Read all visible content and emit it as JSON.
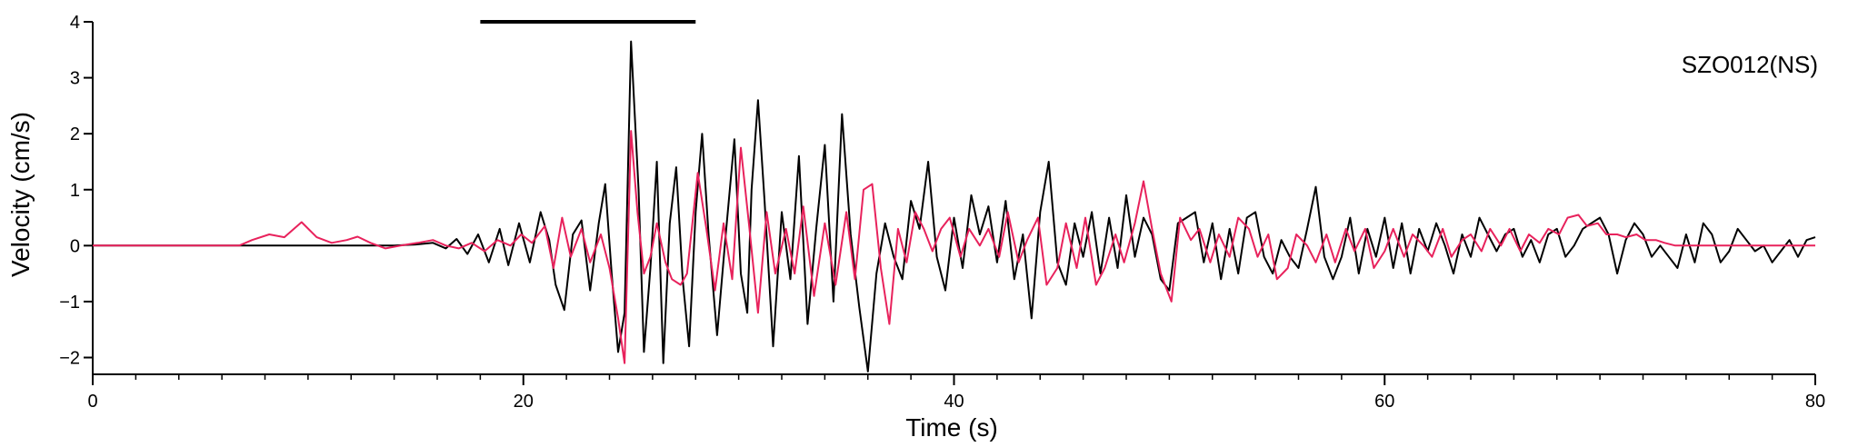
{
  "chart_data": {
    "type": "line",
    "station_label": "SZO012(NS)",
    "xlabel": "Time (s)",
    "ylabel": "Velocity (cm/s)",
    "xlim": [
      0,
      80
    ],
    "ylim": [
      -2.3,
      4.0
    ],
    "x_ticks": [
      0,
      20,
      40,
      60,
      80
    ],
    "y_ticks": [
      -2,
      -1,
      0,
      1,
      2,
      3,
      4
    ],
    "time_window": [
      18,
      28
    ],
    "grid": false,
    "legend": "none",
    "series": [
      {
        "color": "#000000",
        "points": [
          [
            0,
            0
          ],
          [
            5,
            0
          ],
          [
            10,
            0
          ],
          [
            14,
            0
          ],
          [
            15,
            0.02
          ],
          [
            15.8,
            0.05
          ],
          [
            16.4,
            -0.05
          ],
          [
            16.9,
            0.12
          ],
          [
            17.4,
            -0.15
          ],
          [
            17.9,
            0.2
          ],
          [
            18.4,
            -0.3
          ],
          [
            18.9,
            0.3
          ],
          [
            19.3,
            -0.35
          ],
          [
            19.8,
            0.4
          ],
          [
            20.3,
            -0.3
          ],
          [
            20.8,
            0.6
          ],
          [
            21.2,
            0.1
          ],
          [
            21.5,
            -0.7
          ],
          [
            21.9,
            -1.15
          ],
          [
            22.3,
            0.2
          ],
          [
            22.7,
            0.45
          ],
          [
            23.1,
            -0.8
          ],
          [
            23.5,
            0.4
          ],
          [
            23.8,
            1.1
          ],
          [
            24.1,
            -0.5
          ],
          [
            24.4,
            -1.9
          ],
          [
            24.7,
            -1.2
          ],
          [
            25,
            3.65
          ],
          [
            25.35,
            1.0
          ],
          [
            25.6,
            -1.9
          ],
          [
            25.9,
            -0.4
          ],
          [
            26.2,
            1.5
          ],
          [
            26.5,
            -2.1
          ],
          [
            26.8,
            0.4
          ],
          [
            27.1,
            1.4
          ],
          [
            27.4,
            -0.6
          ],
          [
            27.7,
            -1.8
          ],
          [
            28,
            0.6
          ],
          [
            28.3,
            2.0
          ],
          [
            28.6,
            0.2
          ],
          [
            29,
            -1.6
          ],
          [
            29.4,
            0.2
          ],
          [
            29.8,
            1.9
          ],
          [
            30.1,
            -0.5
          ],
          [
            30.4,
            -1.2
          ],
          [
            30.6,
            1.0
          ],
          [
            30.9,
            2.6
          ],
          [
            31.2,
            0.8
          ],
          [
            31.6,
            -1.8
          ],
          [
            32,
            0.6
          ],
          [
            32.4,
            -0.6
          ],
          [
            32.8,
            1.6
          ],
          [
            33.2,
            -1.4
          ],
          [
            33.6,
            0.3
          ],
          [
            34,
            1.8
          ],
          [
            34.4,
            -1.0
          ],
          [
            34.8,
            2.35
          ],
          [
            35.2,
            0.2
          ],
          [
            35.6,
            -1.1
          ],
          [
            36,
            -2.25
          ],
          [
            36.4,
            -0.5
          ],
          [
            36.8,
            0.4
          ],
          [
            37.2,
            -0.2
          ],
          [
            37.6,
            -0.6
          ],
          [
            38,
            0.8
          ],
          [
            38.4,
            0.3
          ],
          [
            38.8,
            1.5
          ],
          [
            39.2,
            -0.2
          ],
          [
            39.6,
            -0.8
          ],
          [
            40,
            0.5
          ],
          [
            40.4,
            -0.4
          ],
          [
            40.8,
            0.9
          ],
          [
            41.2,
            0.2
          ],
          [
            41.6,
            0.7
          ],
          [
            42,
            -0.3
          ],
          [
            42.4,
            0.8
          ],
          [
            42.8,
            -0.6
          ],
          [
            43.2,
            0.2
          ],
          [
            43.6,
            -1.3
          ],
          [
            44,
            0.6
          ],
          [
            44.4,
            1.5
          ],
          [
            44.8,
            -0.3
          ],
          [
            45.2,
            -0.7
          ],
          [
            45.6,
            0.4
          ],
          [
            46,
            -0.2
          ],
          [
            46.4,
            0.6
          ],
          [
            46.8,
            -0.5
          ],
          [
            47.2,
            0.5
          ],
          [
            47.6,
            -0.4
          ],
          [
            48,
            0.9
          ],
          [
            48.4,
            -0.2
          ],
          [
            48.8,
            0.5
          ],
          [
            49.2,
            0.2
          ],
          [
            49.6,
            -0.6
          ],
          [
            50,
            -0.8
          ],
          [
            50.4,
            0.4
          ],
          [
            50.8,
            0.5
          ],
          [
            51.2,
            0.6
          ],
          [
            51.6,
            -0.3
          ],
          [
            52,
            0.4
          ],
          [
            52.4,
            -0.6
          ],
          [
            52.8,
            0.3
          ],
          [
            53.2,
            -0.5
          ],
          [
            53.6,
            0.5
          ],
          [
            54,
            0.6
          ],
          [
            54.4,
            -0.2
          ],
          [
            54.8,
            -0.5
          ],
          [
            55.2,
            0.1
          ],
          [
            55.6,
            -0.2
          ],
          [
            56,
            -0.4
          ],
          [
            56.4,
            0.3
          ],
          [
            56.8,
            1.05
          ],
          [
            57.2,
            -0.2
          ],
          [
            57.6,
            -0.6
          ],
          [
            58,
            -0.2
          ],
          [
            58.4,
            0.5
          ],
          [
            58.8,
            -0.5
          ],
          [
            59.2,
            0.3
          ],
          [
            59.6,
            -0.2
          ],
          [
            60,
            0.5
          ],
          [
            60.4,
            -0.4
          ],
          [
            60.8,
            0.4
          ],
          [
            61.2,
            -0.5
          ],
          [
            61.6,
            0.3
          ],
          [
            62,
            -0.1
          ],
          [
            62.4,
            0.4
          ],
          [
            62.8,
            0.0
          ],
          [
            63.2,
            -0.5
          ],
          [
            63.6,
            0.2
          ],
          [
            64,
            -0.2
          ],
          [
            64.4,
            0.5
          ],
          [
            64.8,
            0.2
          ],
          [
            65.2,
            -0.1
          ],
          [
            65.6,
            0.2
          ],
          [
            66,
            0.3
          ],
          [
            66.4,
            -0.2
          ],
          [
            66.8,
            0.1
          ],
          [
            67.2,
            -0.3
          ],
          [
            67.6,
            0.2
          ],
          [
            68,
            0.3
          ],
          [
            68.4,
            -0.2
          ],
          [
            68.8,
            0.0
          ],
          [
            69.2,
            0.3
          ],
          [
            69.6,
            0.4
          ],
          [
            70,
            0.5
          ],
          [
            70.4,
            0.2
          ],
          [
            70.8,
            -0.5
          ],
          [
            71.2,
            0.1
          ],
          [
            71.6,
            0.4
          ],
          [
            72,
            0.2
          ],
          [
            72.4,
            -0.2
          ],
          [
            72.8,
            0.0
          ],
          [
            73.2,
            -0.2
          ],
          [
            73.6,
            -0.4
          ],
          [
            74,
            0.2
          ],
          [
            74.4,
            -0.3
          ],
          [
            74.8,
            0.4
          ],
          [
            75.2,
            0.2
          ],
          [
            75.6,
            -0.3
          ],
          [
            76,
            -0.1
          ],
          [
            76.4,
            0.3
          ],
          [
            76.8,
            0.1
          ],
          [
            77.2,
            -0.1
          ],
          [
            77.6,
            0.0
          ],
          [
            78,
            -0.3
          ],
          [
            78.4,
            -0.1
          ],
          [
            78.8,
            0.1
          ],
          [
            79.2,
            -0.2
          ],
          [
            79.6,
            0.1
          ],
          [
            80,
            0.15
          ]
        ]
      },
      {
        "color": "#e8225c",
        "points": [
          [
            0,
            0
          ],
          [
            6.8,
            0
          ],
          [
            7.4,
            0.1
          ],
          [
            8.2,
            0.2
          ],
          [
            8.9,
            0.15
          ],
          [
            9.7,
            0.42
          ],
          [
            10.4,
            0.15
          ],
          [
            11.1,
            0.05
          ],
          [
            11.8,
            0.1
          ],
          [
            12.3,
            0.16
          ],
          [
            12.9,
            0.05
          ],
          [
            13.6,
            -0.05
          ],
          [
            14.3,
            0.0
          ],
          [
            15.1,
            0.05
          ],
          [
            15.8,
            0.1
          ],
          [
            16.4,
            0.0
          ],
          [
            17,
            -0.05
          ],
          [
            17.6,
            0.05
          ],
          [
            18.2,
            -0.1
          ],
          [
            18.8,
            0.1
          ],
          [
            19.4,
            0.0
          ],
          [
            19.9,
            0.2
          ],
          [
            20.4,
            0.05
          ],
          [
            21,
            0.35
          ],
          [
            21.4,
            -0.4
          ],
          [
            21.8,
            0.5
          ],
          [
            22.2,
            -0.2
          ],
          [
            22.7,
            0.3
          ],
          [
            23.1,
            -0.3
          ],
          [
            23.6,
            0.2
          ],
          [
            24,
            -0.4
          ],
          [
            24.4,
            -1.3
          ],
          [
            24.7,
            -2.1
          ],
          [
            25,
            2.05
          ],
          [
            25.3,
            0.6
          ],
          [
            25.6,
            -0.5
          ],
          [
            25.9,
            -0.2
          ],
          [
            26.2,
            0.4
          ],
          [
            26.6,
            -0.3
          ],
          [
            26.9,
            -0.6
          ],
          [
            27.3,
            -0.7
          ],
          [
            27.6,
            -0.5
          ],
          [
            28.1,
            1.3
          ],
          [
            28.5,
            0.3
          ],
          [
            28.9,
            -0.8
          ],
          [
            29.3,
            0.4
          ],
          [
            29.7,
            -0.6
          ],
          [
            30.1,
            1.75
          ],
          [
            30.5,
            0.3
          ],
          [
            30.9,
            -1.2
          ],
          [
            31.3,
            0.6
          ],
          [
            31.7,
            -0.5
          ],
          [
            32.2,
            0.3
          ],
          [
            32.6,
            -0.5
          ],
          [
            33,
            0.7
          ],
          [
            33.5,
            -0.9
          ],
          [
            34,
            0.4
          ],
          [
            34.5,
            -0.7
          ],
          [
            35,
            0.6
          ],
          [
            35.4,
            -0.6
          ],
          [
            35.8,
            1.0
          ],
          [
            36.2,
            1.1
          ],
          [
            36.6,
            -0.4
          ],
          [
            37,
            -1.4
          ],
          [
            37.4,
            0.3
          ],
          [
            37.8,
            -0.3
          ],
          [
            38.2,
            0.6
          ],
          [
            38.6,
            0.3
          ],
          [
            39,
            -0.1
          ],
          [
            39.4,
            0.3
          ],
          [
            39.8,
            0.5
          ],
          [
            40.3,
            -0.2
          ],
          [
            40.7,
            0.3
          ],
          [
            41.2,
            0.0
          ],
          [
            41.6,
            0.3
          ],
          [
            42.1,
            -0.2
          ],
          [
            42.5,
            0.6
          ],
          [
            43,
            -0.3
          ],
          [
            43.4,
            0.1
          ],
          [
            43.9,
            0.5
          ],
          [
            44.3,
            -0.7
          ],
          [
            44.8,
            -0.4
          ],
          [
            45.2,
            0.4
          ],
          [
            45.7,
            -0.4
          ],
          [
            46.1,
            0.5
          ],
          [
            46.6,
            -0.7
          ],
          [
            47,
            -0.4
          ],
          [
            47.5,
            0.2
          ],
          [
            47.9,
            -0.3
          ],
          [
            48.4,
            0.4
          ],
          [
            48.8,
            1.15
          ],
          [
            49.2,
            0.3
          ],
          [
            49.6,
            -0.5
          ],
          [
            50.1,
            -1.0
          ],
          [
            50.5,
            0.5
          ],
          [
            51,
            0.1
          ],
          [
            51.4,
            0.3
          ],
          [
            51.9,
            -0.3
          ],
          [
            52.3,
            0.2
          ],
          [
            52.8,
            -0.2
          ],
          [
            53.2,
            0.5
          ],
          [
            53.7,
            0.3
          ],
          [
            54.1,
            -0.2
          ],
          [
            54.6,
            0.2
          ],
          [
            55,
            -0.6
          ],
          [
            55.5,
            -0.4
          ],
          [
            55.9,
            0.2
          ],
          [
            56.4,
            0.0
          ],
          [
            56.8,
            -0.3
          ],
          [
            57.3,
            0.2
          ],
          [
            57.7,
            -0.3
          ],
          [
            58.2,
            0.3
          ],
          [
            58.6,
            -0.1
          ],
          [
            59.1,
            0.3
          ],
          [
            59.5,
            -0.4
          ],
          [
            60,
            -0.1
          ],
          [
            60.4,
            0.3
          ],
          [
            60.9,
            -0.2
          ],
          [
            61.3,
            0.2
          ],
          [
            61.8,
            0.0
          ],
          [
            62.2,
            -0.2
          ],
          [
            62.7,
            0.3
          ],
          [
            63.1,
            -0.2
          ],
          [
            63.6,
            0.1
          ],
          [
            64,
            0.2
          ],
          [
            64.5,
            -0.1
          ],
          [
            64.9,
            0.3
          ],
          [
            65.4,
            0.0
          ],
          [
            65.8,
            0.3
          ],
          [
            66.3,
            -0.1
          ],
          [
            66.7,
            0.2
          ],
          [
            67.2,
            0.05
          ],
          [
            67.6,
            0.3
          ],
          [
            68.1,
            0.2
          ],
          [
            68.5,
            0.5
          ],
          [
            69,
            0.55
          ],
          [
            69.4,
            0.35
          ],
          [
            69.9,
            0.4
          ],
          [
            70.3,
            0.2
          ],
          [
            70.8,
            0.2
          ],
          [
            71.2,
            0.15
          ],
          [
            71.7,
            0.2
          ],
          [
            72.1,
            0.1
          ],
          [
            72.6,
            0.1
          ],
          [
            73,
            0.05
          ],
          [
            73.5,
            0.0
          ],
          [
            74,
            0.0
          ],
          [
            75,
            0.0
          ],
          [
            76,
            0.0
          ],
          [
            77,
            0.0
          ],
          [
            78,
            0.0
          ],
          [
            79,
            0.0
          ],
          [
            80,
            0.0
          ]
        ]
      }
    ]
  }
}
